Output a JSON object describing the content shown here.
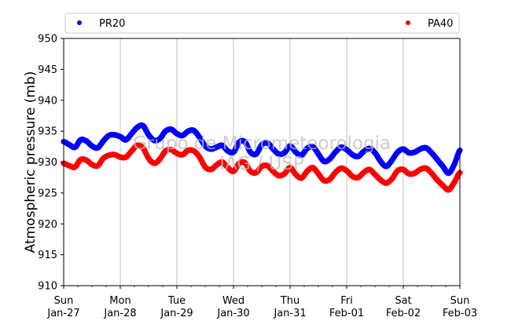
{
  "chart_data": {
    "type": "scatter",
    "ylabel": "Atmospheric pressure (mb)",
    "ylim": [
      910,
      950
    ],
    "yticks": [
      910,
      915,
      920,
      925,
      930,
      935,
      940,
      945,
      950
    ],
    "xlim": [
      0,
      7
    ],
    "xticks": [
      {
        "x": 0,
        "day": "Sun",
        "date": "Jan-27"
      },
      {
        "x": 1,
        "day": "Mon",
        "date": "Jan-28"
      },
      {
        "x": 2,
        "day": "Tue",
        "date": "Jan-29"
      },
      {
        "x": 3,
        "day": "Wed",
        "date": "Jan-30"
      },
      {
        "x": 4,
        "day": "Thu",
        "date": "Jan-31"
      },
      {
        "x": 5,
        "day": "Fri",
        "date": "Feb-01"
      },
      {
        "x": 6,
        "day": "Sat",
        "date": "Feb-02"
      },
      {
        "x": 7,
        "day": "Sun",
        "date": "Feb-03"
      }
    ],
    "grid": "vertical",
    "legend_placement": "top",
    "watermark": [
      "Grupo de Micrometeorologia",
      "IAG / USP"
    ],
    "series": [
      {
        "name": "PR20",
        "color": "#0000ff",
        "x": [
          0,
          0.1,
          0.2,
          0.3,
          0.4,
          0.5,
          0.6,
          0.7,
          0.8,
          0.9,
          1.0,
          1.1,
          1.2,
          1.3,
          1.4,
          1.5,
          1.6,
          1.7,
          1.8,
          1.9,
          2.0,
          2.1,
          2.2,
          2.3,
          2.4,
          2.5,
          2.6,
          2.7,
          2.8,
          2.9,
          3.0,
          3.1,
          3.2,
          3.3,
          3.4,
          3.5,
          3.6,
          3.7,
          3.8,
          3.9,
          4.0,
          4.1,
          4.2,
          4.3,
          4.4,
          4.5,
          4.6,
          4.7,
          4.8,
          4.9,
          5.0,
          5.1,
          5.2,
          5.3,
          5.4,
          5.5,
          5.6,
          5.7,
          5.8,
          5.9,
          6.0,
          6.1,
          6.2,
          6.3,
          6.4,
          6.5,
          6.6,
          6.7,
          6.8,
          6.9,
          7.0
        ],
        "y": [
          933.3,
          932.8,
          932.4,
          933.6,
          933.4,
          932.6,
          932.3,
          933.4,
          934.3,
          934.4,
          934.1,
          933.6,
          934.6,
          935.6,
          935.9,
          934.4,
          933.5,
          933.8,
          935.0,
          935.3,
          934.6,
          934.3,
          935.0,
          935.1,
          934.0,
          932.6,
          932.1,
          932.4,
          932.7,
          931.8,
          931.6,
          933.2,
          933.3,
          931.6,
          931.3,
          932.8,
          933.1,
          932.1,
          931.3,
          931.5,
          932.6,
          931.6,
          931.1,
          932.2,
          932.5,
          931.3,
          930.1,
          930.5,
          931.6,
          932.4,
          932.0,
          931.2,
          930.9,
          931.7,
          932.2,
          931.5,
          930.1,
          929.3,
          930.3,
          931.6,
          932.1,
          931.5,
          931.6,
          932.1,
          932.3,
          931.5,
          930.4,
          929.3,
          928.2,
          929.6,
          931.9
        ]
      },
      {
        "name": "PA40",
        "color": "#ff0000",
        "x": [
          0,
          0.1,
          0.2,
          0.3,
          0.4,
          0.5,
          0.6,
          0.7,
          0.8,
          0.9,
          1.0,
          1.1,
          1.2,
          1.3,
          1.4,
          1.5,
          1.6,
          1.7,
          1.8,
          1.9,
          2.0,
          2.1,
          2.2,
          2.3,
          2.4,
          2.5,
          2.6,
          2.7,
          2.8,
          2.9,
          3.0,
          3.1,
          3.2,
          3.3,
          3.4,
          3.5,
          3.6,
          3.7,
          3.8,
          3.9,
          4.0,
          4.1,
          4.2,
          4.3,
          4.4,
          4.5,
          4.6,
          4.7,
          4.8,
          4.9,
          5.0,
          5.1,
          5.2,
          5.3,
          5.4,
          5.5,
          5.6,
          5.7,
          5.8,
          5.9,
          6.0,
          6.1,
          6.2,
          6.3,
          6.4,
          6.5,
          6.6,
          6.7,
          6.8,
          6.9,
          7.0
        ],
        "y": [
          929.8,
          929.4,
          929.2,
          930.4,
          930.3,
          929.6,
          929.4,
          930.6,
          931.1,
          931.2,
          930.8,
          930.8,
          931.8,
          932.7,
          932.3,
          930.6,
          929.8,
          930.5,
          931.8,
          932.0,
          931.4,
          931.2,
          931.9,
          931.8,
          930.8,
          929.2,
          928.8,
          929.5,
          930.0,
          929.1,
          928.5,
          929.8,
          929.9,
          928.5,
          928.3,
          929.3,
          929.4,
          928.5,
          927.8,
          928.1,
          929.1,
          928.0,
          927.4,
          928.5,
          929.1,
          928.1,
          927.0,
          927.2,
          928.3,
          929.0,
          928.6,
          927.7,
          927.5,
          928.3,
          928.8,
          928.0,
          927.1,
          926.6,
          927.3,
          928.6,
          928.8,
          928.1,
          928.2,
          928.8,
          929.0,
          928.2,
          927.1,
          926.2,
          925.5,
          926.7,
          928.3
        ]
      }
    ]
  }
}
